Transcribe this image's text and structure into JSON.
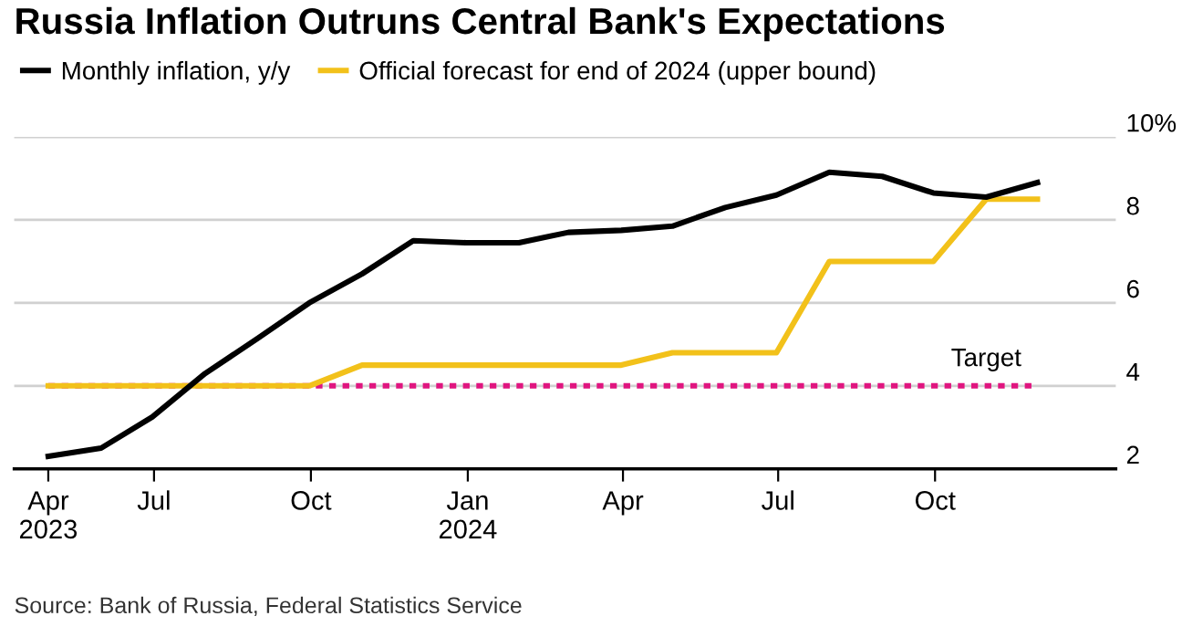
{
  "chart_data": {
    "type": "line",
    "title": "Russia Inflation Outruns Central Bank's Expectations",
    "x": [
      "2023-04-30",
      "2023-05-31",
      "2023-06-30",
      "2023-07-31",
      "2023-08-31",
      "2023-09-30",
      "2023-10-31",
      "2023-11-30",
      "2023-12-31",
      "2024-01-31",
      "2024-02-29",
      "2024-03-31",
      "2024-04-30",
      "2024-05-31",
      "2024-06-30",
      "2024-07-31",
      "2024-08-31",
      "2024-09-30",
      "2024-10-31",
      "2024-11-30"
    ],
    "series": [
      {
        "name": "Monthly inflation, y/y",
        "color": "#000000",
        "values": [
          2.3,
          2.5,
          3.25,
          4.3,
          5.15,
          6.0,
          6.7,
          7.5,
          7.45,
          7.45,
          7.7,
          7.75,
          7.85,
          8.3,
          8.6,
          9.15,
          9.05,
          8.65,
          8.55,
          8.9
        ]
      },
      {
        "name": "Official forecast for end of 2024 (upper bound)",
        "color": "#f2c11a",
        "values": [
          4.0,
          4.0,
          4.0,
          4.0,
          4.0,
          4.0,
          4.5,
          4.5,
          4.5,
          4.5,
          4.5,
          4.5,
          4.8,
          4.8,
          4.8,
          7.0,
          7.0,
          7.0,
          8.5,
          8.5
        ]
      }
    ],
    "ref_lines": [
      {
        "axis": "y",
        "value": 4,
        "label": "Target",
        "color": "#e0157f",
        "line_style": "dotted"
      }
    ],
    "xlim": [
      "2023-04-10",
      "2025-01-15"
    ],
    "xticks": [
      {
        "value": "2023-04-30",
        "label": "Apr\n2023"
      },
      {
        "value": "2023-07",
        "label": "Jul"
      },
      {
        "value": "2023-10",
        "label": "Oct"
      },
      {
        "value": "2024-01",
        "label": "Jan\n2024"
      },
      {
        "value": "2024-04",
        "label": "Apr"
      },
      {
        "value": "2024-07",
        "label": "Jul"
      },
      {
        "value": "2024-10",
        "label": "Oct"
      }
    ],
    "ylim": [
      2,
      10
    ],
    "yticks": [
      2,
      4,
      6,
      8,
      {
        "value": 10,
        "label": "10%"
      }
    ],
    "grid": "y",
    "legend": "top left",
    "line_style": "solid",
    "marker": "none",
    "annotations": [
      "Source: Bank of Russia, Federal Statistics Service"
    ]
  }
}
